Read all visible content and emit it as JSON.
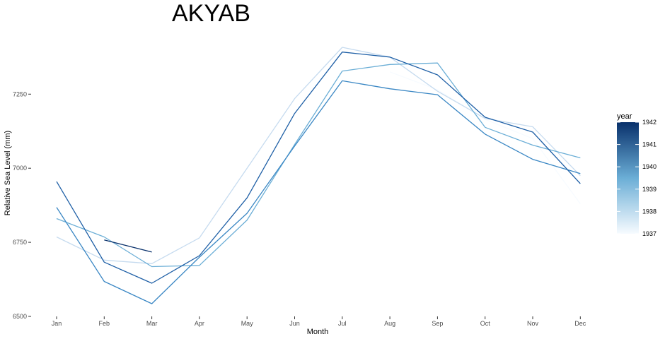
{
  "chart_data": {
    "type": "line",
    "title": "AKYAB",
    "xlabel": "Month",
    "ylabel": "Relative Sea Level (mm)",
    "categories": [
      "Jan",
      "Feb",
      "Mar",
      "Apr",
      "May",
      "Jun",
      "Jul",
      "Aug",
      "Sep",
      "Oct",
      "Nov",
      "Dec"
    ],
    "ylim": [
      6500,
      7520
    ],
    "yticks": [
      6500,
      6750,
      7000,
      7250
    ],
    "legend": {
      "title": "year",
      "position": "right",
      "range": [
        1937,
        1942
      ],
      "ticks": [
        1937,
        1938,
        1939,
        1940,
        1941,
        1942
      ],
      "low_color": "#f7fbff",
      "high_color": "#08306b"
    },
    "series": [
      {
        "name": "1937",
        "color": "#f7fbff",
        "values": [
          null,
          null,
          null,
          null,
          null,
          null,
          null,
          7325,
          7265,
          7165,
          7100,
          6880
        ]
      },
      {
        "name": "1938",
        "color": "#c6dbef",
        "values": [
          6768,
          6690,
          6678,
          6765,
          7000,
          7235,
          7408,
          7375,
          7260,
          7168,
          7140,
          6975
        ]
      },
      {
        "name": "1939",
        "color": "#6baed6",
        "values": [
          6830,
          6768,
          6668,
          6672,
          6825,
          7080,
          7328,
          7350,
          7355,
          7138,
          7078,
          7035
        ]
      },
      {
        "name": "1940",
        "color": "#3a87c4",
        "values": [
          6868,
          6618,
          6543,
          6700,
          6848,
          7075,
          7295,
          7268,
          7248,
          7115,
          7030,
          6982
        ]
      },
      {
        "name": "1941",
        "color": "#1e5fa6",
        "values": [
          6955,
          6683,
          6612,
          6705,
          6900,
          7185,
          7392,
          7375,
          7315,
          7172,
          7122,
          6948
        ]
      },
      {
        "name": "1942",
        "color": "#08306b",
        "values": [
          null,
          6758,
          6717,
          null,
          null,
          null,
          null,
          null,
          null,
          null,
          null,
          null
        ]
      }
    ]
  }
}
